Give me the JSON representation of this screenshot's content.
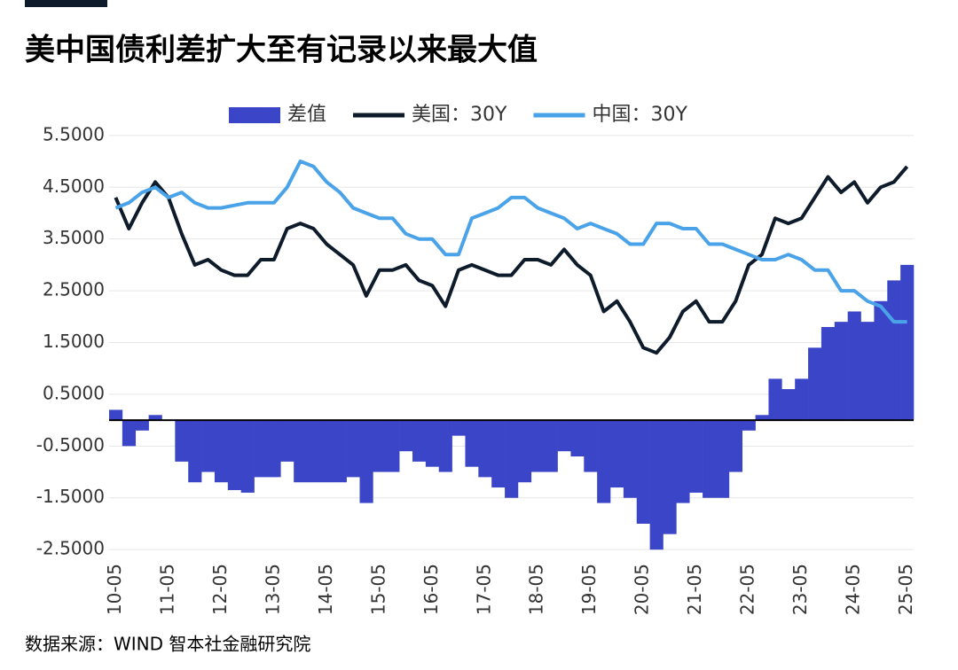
{
  "chart_data": {
    "type": "bar-line",
    "title": "美中国债利差扩大至有记录以来最大值",
    "source": "数据来源：WIND 智本社金融研究院",
    "x": [
      "10-05",
      "10-08",
      "10-11",
      "11-02",
      "11-05",
      "11-08",
      "11-11",
      "12-02",
      "12-05",
      "12-08",
      "12-11",
      "13-02",
      "13-05",
      "13-08",
      "13-11",
      "14-02",
      "14-05",
      "14-08",
      "14-11",
      "15-02",
      "15-05",
      "15-08",
      "15-11",
      "16-02",
      "16-05",
      "16-08",
      "16-11",
      "17-02",
      "17-05",
      "17-08",
      "17-11",
      "18-02",
      "18-05",
      "18-08",
      "18-11",
      "19-02",
      "19-05",
      "19-08",
      "19-11",
      "20-02",
      "20-05",
      "20-08",
      "20-11",
      "21-02",
      "21-05",
      "21-08",
      "21-11",
      "22-02",
      "22-05",
      "22-08",
      "22-11",
      "23-02",
      "23-05",
      "23-08",
      "23-11",
      "24-02",
      "24-05",
      "24-08",
      "24-11",
      "25-02",
      "25-05"
    ],
    "xticks": [
      "10-05",
      "11-05",
      "12-05",
      "13-05",
      "14-05",
      "15-05",
      "16-05",
      "17-05",
      "18-05",
      "19-05",
      "20-05",
      "21-05",
      "22-05",
      "23-05",
      "24-05",
      "25-05"
    ],
    "series": [
      {
        "name": "差值",
        "type": "bar",
        "color": "#3b45c8",
        "values": [
          0.2,
          -0.5,
          -0.2,
          0.1,
          0.0,
          -0.8,
          -1.2,
          -1.0,
          -1.2,
          -1.35,
          -1.4,
          -1.1,
          -1.1,
          -0.8,
          -1.2,
          -1.2,
          -1.2,
          -1.2,
          -1.1,
          -1.6,
          -1.0,
          -1.0,
          -0.6,
          -0.8,
          -0.9,
          -1.0,
          -0.3,
          -0.9,
          -1.1,
          -1.3,
          -1.5,
          -1.2,
          -1.0,
          -1.0,
          -0.6,
          -0.7,
          -1.0,
          -1.6,
          -1.3,
          -1.5,
          -2.0,
          -2.5,
          -2.2,
          -1.6,
          -1.4,
          -1.5,
          -1.5,
          -1.0,
          -0.2,
          0.1,
          0.8,
          0.6,
          0.8,
          1.4,
          1.8,
          1.9,
          2.1,
          1.9,
          2.3,
          2.7,
          3.0
        ]
      },
      {
        "name": "美国：30Y",
        "type": "line",
        "color": "#0d1b2a",
        "values": [
          4.3,
          3.7,
          4.2,
          4.6,
          4.3,
          3.6,
          3.0,
          3.1,
          2.9,
          2.8,
          2.8,
          3.1,
          3.1,
          3.7,
          3.8,
          3.7,
          3.4,
          3.2,
          3.0,
          2.4,
          2.9,
          2.9,
          3.0,
          2.7,
          2.6,
          2.2,
          2.9,
          3.0,
          2.9,
          2.8,
          2.8,
          3.1,
          3.1,
          3.0,
          3.3,
          3.0,
          2.8,
          2.1,
          2.3,
          1.9,
          1.4,
          1.3,
          1.6,
          2.1,
          2.3,
          1.9,
          1.9,
          2.3,
          3.0,
          3.2,
          3.9,
          3.8,
          3.9,
          4.3,
          4.7,
          4.4,
          4.6,
          4.2,
          4.5,
          4.6,
          4.9
        ]
      },
      {
        "name": "中国：30Y",
        "type": "line",
        "color": "#4aa3e8",
        "values": [
          4.1,
          4.2,
          4.4,
          4.5,
          4.3,
          4.4,
          4.2,
          4.1,
          4.1,
          4.15,
          4.2,
          4.2,
          4.2,
          4.5,
          5.0,
          4.9,
          4.6,
          4.4,
          4.1,
          4.0,
          3.9,
          3.9,
          3.6,
          3.5,
          3.5,
          3.2,
          3.2,
          3.9,
          4.0,
          4.1,
          4.3,
          4.3,
          4.1,
          4.0,
          3.9,
          3.7,
          3.8,
          3.7,
          3.6,
          3.4,
          3.4,
          3.8,
          3.8,
          3.7,
          3.7,
          3.4,
          3.4,
          3.3,
          3.2,
          3.1,
          3.1,
          3.2,
          3.1,
          2.9,
          2.9,
          2.5,
          2.5,
          2.3,
          2.2,
          1.9,
          1.9
        ]
      }
    ],
    "ylim": [
      -2.6,
      5.6
    ],
    "yticks": [
      {
        "value": 5.5,
        "label": "5.5000"
      },
      {
        "value": 4.5,
        "label": "4.5000"
      },
      {
        "value": 3.5,
        "label": "3.5000"
      },
      {
        "value": 2.5,
        "label": "2.5000"
      },
      {
        "value": 1.5,
        "label": "1.5000"
      },
      {
        "value": 0.5,
        "label": "0.5000"
      },
      {
        "value": -0.5,
        "label": "-0.5000"
      },
      {
        "value": -1.5,
        "label": "-1.5000"
      },
      {
        "value": -2.5,
        "label": "-2.5000"
      }
    ],
    "grid": true,
    "legend": "top"
  }
}
